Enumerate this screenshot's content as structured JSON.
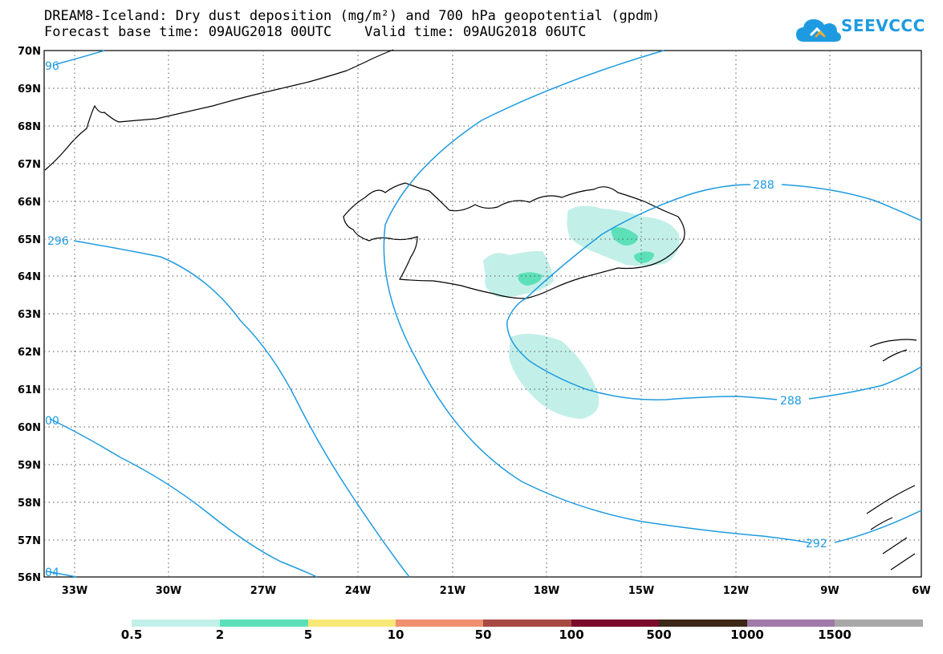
{
  "title_line1": "DREAM8-Iceland: Dry dust deposition (mg/m²) and 700 hPa geopotential (gpdm)",
  "title_line2": "Forecast base time: 09AUG2018 00UTC    Valid time: 09AUG2018 06UTC",
  "logo_text": "SEEVCCC",
  "logo_icon": "cloud-icon",
  "map": {
    "lat_labels": [
      "70N",
      "69N",
      "68N",
      "67N",
      "66N",
      "65N",
      "64N",
      "63N",
      "62N",
      "61N",
      "60N",
      "59N",
      "58N",
      "57N",
      "56N"
    ],
    "lon_labels": [
      "33W",
      "30W",
      "27W",
      "24W",
      "21W",
      "18W",
      "15W",
      "12W",
      "9W",
      "6W"
    ],
    "contour_labels": [
      "96",
      "296",
      "00",
      "04",
      "288",
      "288",
      "292"
    ],
    "contour_color": "#1e9be0"
  },
  "legend": {
    "colors": [
      "#c2f0e8",
      "#5ce0b8",
      "#f8e878",
      "#f09070",
      "#a84a44",
      "#7a0a2c",
      "#3c2818",
      "#a07aa8",
      "#a8a8a8"
    ],
    "labels": [
      "0.5",
      "2",
      "5",
      "10",
      "50",
      "100",
      "500",
      "1000",
      "1500"
    ]
  }
}
